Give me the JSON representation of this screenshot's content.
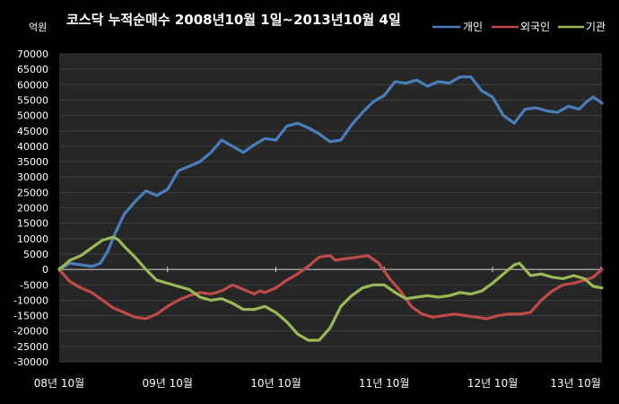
{
  "chart_data": {
    "type": "line",
    "title": "코스닥 누적순매수 2008년10월 1일~2013년10월 4일",
    "ylabel": "억원",
    "ylim": [
      -30000,
      70000
    ],
    "ytick_step": 5000,
    "grid": true,
    "legend_position": "top-right",
    "x_tick_labels": [
      "08년 10월",
      "09년 10월",
      "10년 10월",
      "11년 10월",
      "12년 10월",
      "13년 10월"
    ],
    "x_range": [
      2008.75,
      2013.76
    ],
    "colors": {
      "background": "#000000",
      "plot_area": "#262626",
      "gridline": "#444444",
      "zero_line": "#d9d9d9"
    },
    "series": [
      {
        "name": "개인",
        "color": "#4a7ebb",
        "x": [
          2008.75,
          2008.85,
          2008.95,
          2009.05,
          2009.13,
          2009.2,
          2009.27,
          2009.35,
          2009.45,
          2009.55,
          2009.65,
          2009.75,
          2009.85,
          2009.95,
          2010.05,
          2010.15,
          2010.25,
          2010.35,
          2010.45,
          2010.55,
          2010.65,
          2010.75,
          2010.85,
          2010.95,
          2011.05,
          2011.15,
          2011.25,
          2011.35,
          2011.45,
          2011.55,
          2011.65,
          2011.75,
          2011.85,
          2011.95,
          2012.05,
          2012.15,
          2012.25,
          2012.35,
          2012.45,
          2012.55,
          2012.65,
          2012.75,
          2012.85,
          2012.95,
          2013.05,
          2013.15,
          2013.25,
          2013.35,
          2013.45,
          2013.55,
          2013.62,
          2013.68,
          2013.72,
          2013.76
        ],
        "values": [
          0,
          2000,
          1500,
          1000,
          2000,
          6000,
          12000,
          18000,
          22000,
          25500,
          24000,
          26000,
          32000,
          33500,
          35000,
          38000,
          42000,
          40000,
          38000,
          40500,
          42500,
          42000,
          46500,
          47500,
          46000,
          44000,
          41500,
          42000,
          47000,
          51000,
          54500,
          56500,
          61000,
          60500,
          61500,
          59500,
          61000,
          60500,
          62500,
          62500,
          58000,
          56000,
          50000,
          47500,
          52000,
          52500,
          51500,
          51000,
          53000,
          52000,
          54500,
          56000,
          55000,
          54000
        ]
      },
      {
        "name": "외국인",
        "color": "#be4b48",
        "x": [
          2008.75,
          2008.85,
          2008.95,
          2009.05,
          2009.15,
          2009.25,
          2009.35,
          2009.45,
          2009.55,
          2009.65,
          2009.75,
          2009.85,
          2009.95,
          2010.05,
          2010.15,
          2010.25,
          2010.35,
          2010.45,
          2010.55,
          2010.6,
          2010.65,
          2010.75,
          2010.85,
          2010.95,
          2011.05,
          2011.15,
          2011.25,
          2011.3,
          2011.4,
          2011.5,
          2011.6,
          2011.7,
          2011.8,
          2011.9,
          2012.0,
          2012.1,
          2012.2,
          2012.3,
          2012.4,
          2012.5,
          2012.6,
          2012.7,
          2012.8,
          2012.9,
          2013.0,
          2013.1,
          2013.2,
          2013.3,
          2013.4,
          2013.5,
          2013.6,
          2013.68,
          2013.76
        ],
        "values": [
          0,
          -4000,
          -6000,
          -7500,
          -10000,
          -12500,
          -14000,
          -15500,
          -16000,
          -14500,
          -12000,
          -10000,
          -8500,
          -7500,
          -8000,
          -7000,
          -5000,
          -6500,
          -8000,
          -7000,
          -7500,
          -6000,
          -3500,
          -1500,
          1000,
          4000,
          4500,
          3000,
          3500,
          4000,
          4500,
          2000,
          -3000,
          -7000,
          -12000,
          -14500,
          -15500,
          -15000,
          -14500,
          -15000,
          -15500,
          -16000,
          -15000,
          -14500,
          -14500,
          -14000,
          -10000,
          -7000,
          -5000,
          -4500,
          -3500,
          -2500,
          0
        ]
      },
      {
        "name": "기관",
        "color": "#98b954",
        "x": [
          2008.75,
          2008.85,
          2008.95,
          2009.05,
          2009.15,
          2009.25,
          2009.3,
          2009.35,
          2009.45,
          2009.55,
          2009.65,
          2009.75,
          2009.85,
          2009.95,
          2010.05,
          2010.15,
          2010.25,
          2010.35,
          2010.45,
          2010.55,
          2010.65,
          2010.75,
          2010.85,
          2010.95,
          2011.05,
          2011.15,
          2011.25,
          2011.35,
          2011.45,
          2011.55,
          2011.65,
          2011.75,
          2011.85,
          2011.95,
          2012.05,
          2012.15,
          2012.25,
          2012.35,
          2012.45,
          2012.55,
          2012.65,
          2012.75,
          2012.85,
          2012.95,
          2013.0,
          2013.05,
          2013.1,
          2013.2,
          2013.3,
          2013.4,
          2013.5,
          2013.6,
          2013.68,
          2013.76
        ],
        "values": [
          0,
          3000,
          4500,
          7000,
          9500,
          10500,
          9500,
          7500,
          4000,
          0,
          -3500,
          -4500,
          -5500,
          -6500,
          -9000,
          -10000,
          -9500,
          -11000,
          -13000,
          -13000,
          -12000,
          -14000,
          -17000,
          -21000,
          -23000,
          -23000,
          -19000,
          -12000,
          -8500,
          -6000,
          -5000,
          -5000,
          -7500,
          -9500,
          -9000,
          -8500,
          -9000,
          -8500,
          -7500,
          -8000,
          -7000,
          -4500,
          -1500,
          1500,
          2000,
          0,
          -2000,
          -1500,
          -2500,
          -3000,
          -2000,
          -3000,
          -5500,
          -6000
        ]
      }
    ]
  }
}
